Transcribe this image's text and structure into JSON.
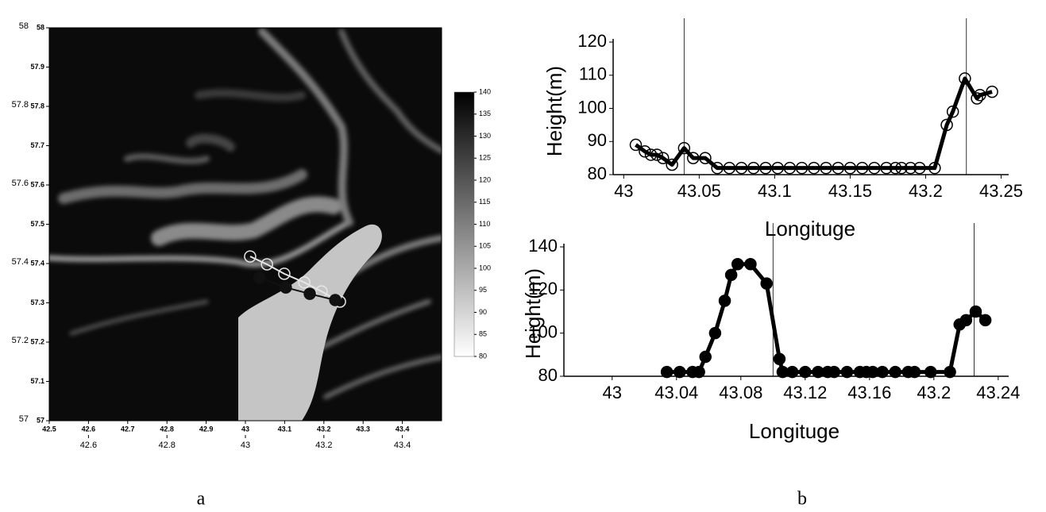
{
  "chart_data": [
    {
      "type": "image",
      "panel_label": "a",
      "xlim": [
        42.5,
        43.5
      ],
      "ylim": [
        57,
        58
      ],
      "xticks": [
        42.5,
        42.6,
        42.7,
        42.8,
        42.9,
        43,
        43.1,
        43.2,
        43.3,
        43.4
      ],
      "xticks_outer": [
        42.6,
        42.8,
        43,
        43.2,
        43.4
      ],
      "yticks": [
        57,
        57.1,
        57.2,
        57.3,
        57.4,
        57.5,
        57.6,
        57.7,
        57.8,
        57.9,
        58
      ],
      "yticks_outer": [
        57,
        57.2,
        57.4,
        57.6,
        57.8,
        58
      ],
      "clim": [
        80,
        140
      ],
      "cticks": [
        80,
        85,
        90,
        95,
        100,
        105,
        110,
        115,
        120,
        125,
        130,
        135,
        140
      ],
      "series": [
        {
          "marker": "open",
          "color": "#e6e6e6",
          "x": [
            43.012,
            43.055,
            43.099,
            43.15,
            43.194,
            43.241
          ],
          "y": [
            57.418,
            57.398,
            57.374,
            57.352,
            57.329,
            57.303
          ]
        },
        {
          "marker": "filled",
          "color": "#111111",
          "x": [
            43.036,
            43.103,
            43.164,
            43.229
          ],
          "y": [
            57.364,
            57.339,
            57.323,
            57.307
          ]
        }
      ]
    },
    {
      "type": "line",
      "panel_label": "b",
      "xlabel": "Longituge",
      "ylabel": "Height(m)",
      "xlim": [
        42.993,
        43.255
      ],
      "ylim": [
        80,
        120
      ],
      "xticks": [
        43,
        43.05,
        43.1,
        43.15,
        43.2,
        43.25
      ],
      "yticks": [
        80,
        90,
        100,
        110,
        120
      ],
      "vlines": [
        43.04,
        43.227
      ],
      "x": [
        43.008,
        43.014,
        43.018,
        43.022,
        43.026,
        43.032,
        43.04,
        43.046,
        43.054,
        43.062,
        43.07,
        43.078,
        43.086,
        43.094,
        43.102,
        43.11,
        43.118,
        43.126,
        43.134,
        43.142,
        43.15,
        43.158,
        43.166,
        43.174,
        43.18,
        43.184,
        43.19,
        43.196,
        43.206,
        43.214,
        43.218,
        43.226,
        43.234,
        43.236,
        43.244
      ],
      "series": [
        {
          "marker": "open",
          "color": "#000000",
          "values": [
            89,
            87,
            86,
            86,
            85,
            83,
            88,
            85,
            85,
            82,
            82,
            82,
            82,
            82,
            82,
            82,
            82,
            82,
            82,
            82,
            82,
            82,
            82,
            82,
            82,
            82,
            82,
            82,
            82,
            95,
            99,
            109,
            103,
            104,
            105
          ]
        }
      ]
    },
    {
      "type": "line",
      "xlabel": "Longituge",
      "ylabel": "Height(m)",
      "xlim": [
        42.97,
        43.2465
      ],
      "ylim": [
        80,
        140
      ],
      "xticks": [
        43,
        43.04,
        43.08,
        43.12,
        43.16,
        43.2,
        43.24
      ],
      "yticks": [
        80,
        100,
        120,
        140
      ],
      "vlines": [
        43.1,
        43.225
      ],
      "x": [
        43.034,
        43.042,
        43.05,
        43.054,
        43.058,
        43.064,
        43.07,
        43.074,
        43.078,
        43.086,
        43.096,
        43.104,
        43.106,
        43.112,
        43.12,
        43.128,
        43.134,
        43.138,
        43.146,
        43.154,
        43.158,
        43.162,
        43.168,
        43.176,
        43.184,
        43.188,
        43.198,
        43.21,
        43.216,
        43.22,
        43.226,
        43.232
      ],
      "series": [
        {
          "marker": "filled",
          "color": "#000000",
          "values": [
            82,
            82,
            82,
            82,
            89,
            100,
            115,
            127,
            132,
            132,
            123,
            88,
            82,
            82,
            82,
            82,
            82,
            82,
            82,
            82,
            82,
            82,
            82,
            82,
            82,
            82,
            82,
            82,
            104,
            106,
            110,
            106
          ]
        }
      ]
    }
  ]
}
